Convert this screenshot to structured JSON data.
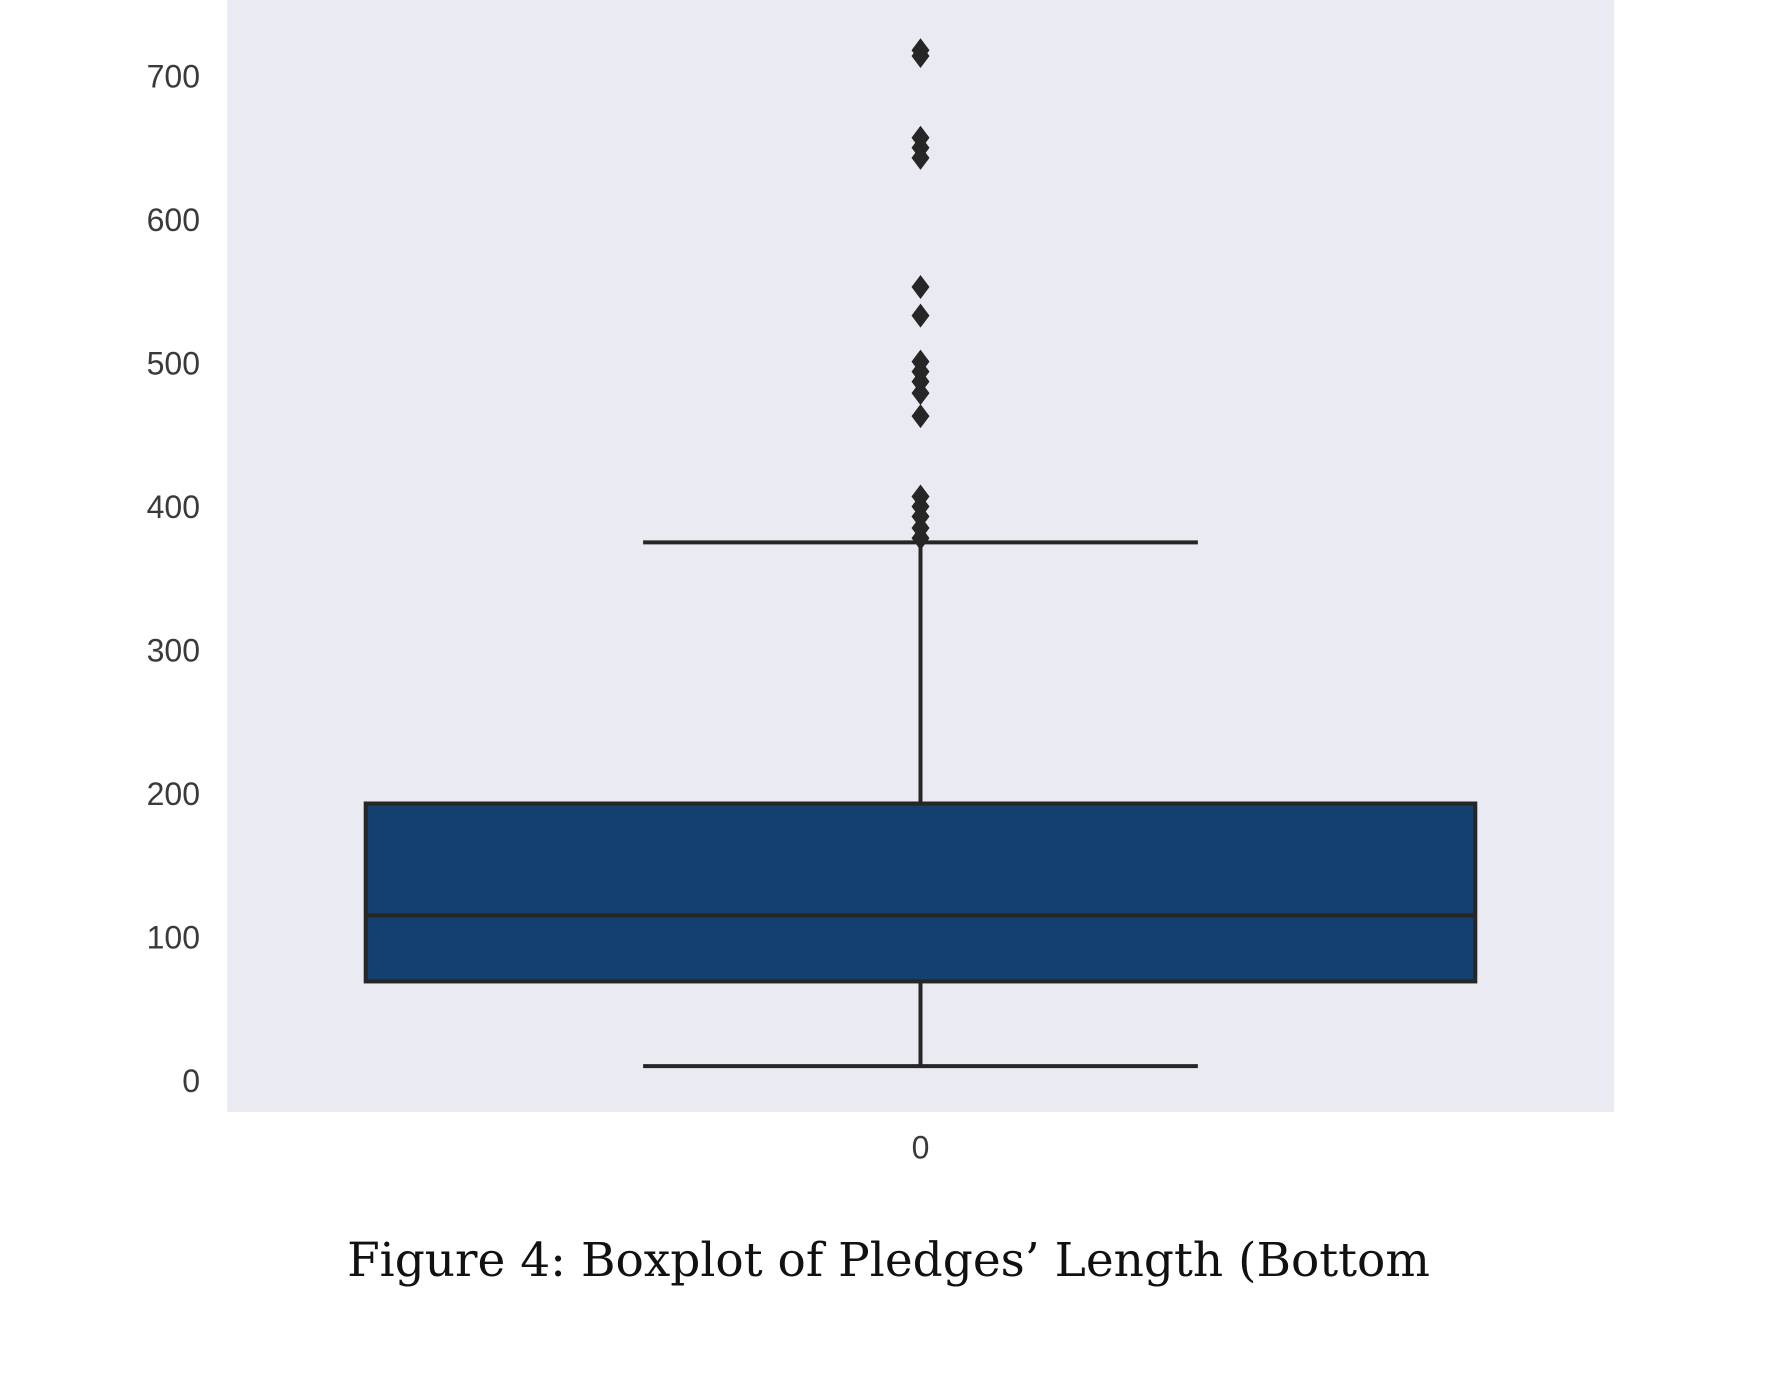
{
  "figure": {
    "caption": "Figure 4: Boxplot of Pledges’ Length (Bottom"
  },
  "colors": {
    "plot_background": "#EAEAF2",
    "box_fill": "#13406E",
    "line": "#262626",
    "outlier": "#262626"
  },
  "chart_data": {
    "type": "box",
    "title": "",
    "xlabel": "",
    "ylabel": "",
    "categories": [
      "0"
    ],
    "ylim": [
      -20,
      755
    ],
    "yticks": [
      0,
      100,
      200,
      300,
      400,
      500,
      600,
      700
    ],
    "yticklabels": [
      "0",
      "100",
      "200",
      "300",
      "400",
      "500",
      "600",
      "700"
    ],
    "grid": false,
    "legend": "none",
    "boxes": [
      {
        "category": "0",
        "whisker_low": 12,
        "q1": 71,
        "median": 117,
        "q3": 195,
        "whisker_high": 377,
        "outliers": [
          380,
          387,
          395,
          402,
          409,
          465,
          481,
          489,
          496,
          503,
          535,
          555,
          645,
          652,
          659,
          716,
          720
        ]
      }
    ]
  }
}
